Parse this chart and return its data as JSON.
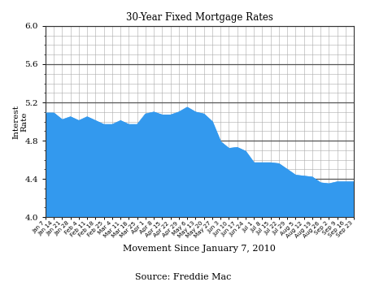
{
  "title": "30-Year Fixed Mortgage Rates",
  "xlabel": "Movement Since January 7, 2010",
  "ylabel": "Interest\nRate",
  "source": "Source: Freddie Mac",
  "ylim": [
    4.0,
    6.0
  ],
  "yticks": [
    4.0,
    4.4,
    4.8,
    5.2,
    5.6,
    6.0
  ],
  "fill_color": "#3399ee",
  "fill_alpha": 1.0,
  "dates": [
    "Jan 7",
    "Jan 14",
    "Jan 21",
    "Jan 28",
    "Feb 4",
    "Feb 11",
    "Feb 18",
    "Feb 25",
    "Mar 4",
    "Mar 11",
    "Mar 18",
    "Mar 25",
    "Apr 1",
    "Apr 8",
    "Apr 15",
    "Apr 22",
    "Apr 29",
    "May 6",
    "May 13",
    "May 20",
    "May 27",
    "Jun 3",
    "Jun 10",
    "Jun 17",
    "Jun 24",
    "Jul 1",
    "Jul 8",
    "Jul 15",
    "Jul 22",
    "Jul 29",
    "Aug 5",
    "Aug 12",
    "Aug 19",
    "Aug 26",
    "Sep 2",
    "Sep 9",
    "Sep 16",
    "Sep 23"
  ],
  "values": [
    5.09,
    5.09,
    5.02,
    5.05,
    5.01,
    5.05,
    5.01,
    4.97,
    4.97,
    5.01,
    4.97,
    4.97,
    5.08,
    5.1,
    5.07,
    5.07,
    5.1,
    5.15,
    5.1,
    5.08,
    5.0,
    4.79,
    4.72,
    4.73,
    4.69,
    4.57,
    4.57,
    4.57,
    4.56,
    4.5,
    4.44,
    4.43,
    4.42,
    4.36,
    4.35,
    4.37,
    4.37,
    4.37
  ]
}
